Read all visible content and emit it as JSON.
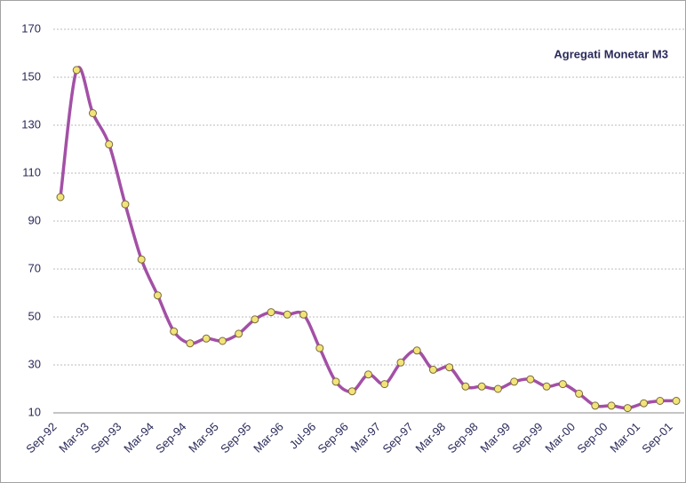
{
  "chart_data": {
    "type": "line",
    "title": "Agregati Monetar M3",
    "categories": [
      "Sep-92",
      null,
      "Mar-93",
      null,
      "Sep-93",
      null,
      "Mar-94",
      null,
      "Sep-94",
      null,
      "Mar-95",
      null,
      "Sep-95",
      null,
      "Mar-96",
      null,
      "Jul-96",
      null,
      "Sep-96",
      null,
      "Mar-97",
      null,
      "Sep-97",
      null,
      "Mar-98",
      null,
      "Sep-98",
      null,
      "Mar-99",
      null,
      "Sep-99",
      null,
      "Mar-00",
      null,
      "Sep-00",
      null,
      "Mar-01",
      null,
      "Sep-01"
    ],
    "series": [
      {
        "name": "Agregati Monetar M3",
        "color": "#a350a6",
        "values": [
          100,
          153,
          135,
          122,
          97,
          74,
          59,
          44,
          39,
          41,
          40,
          43,
          49,
          52,
          51,
          51,
          37,
          23,
          19,
          26,
          22,
          31,
          36,
          28,
          29,
          21,
          21,
          20,
          23,
          24,
          21,
          22,
          18,
          13,
          13,
          12,
          14,
          15,
          15
        ]
      }
    ],
    "ylim": [
      10,
      170
    ],
    "yticks": [
      10,
      30,
      50,
      70,
      90,
      110,
      130,
      150,
      170
    ],
    "grid": true
  }
}
